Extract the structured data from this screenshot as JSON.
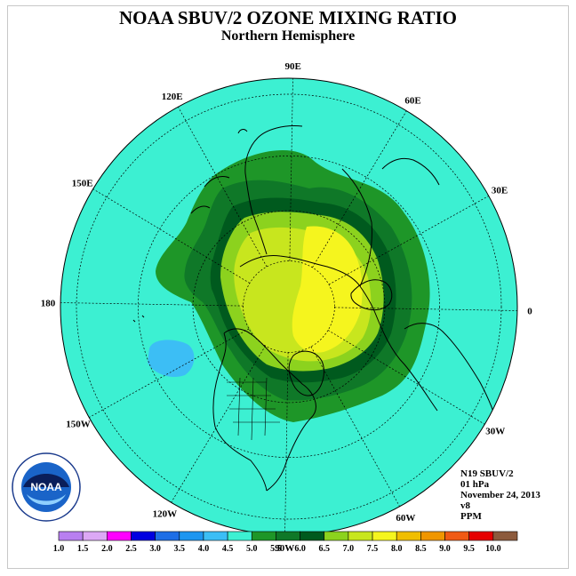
{
  "title": "NOAA SBUV/2 OZONE MIXING RATIO",
  "subtitle": "Northern Hemisphere",
  "longitude_labels": [
    {
      "text": "90E",
      "lon": 90
    },
    {
      "text": "60E",
      "lon": 60
    },
    {
      "text": "30E",
      "lon": 30
    },
    {
      "text": "0",
      "lon": 0
    },
    {
      "text": "30W",
      "lon": -30
    },
    {
      "text": "60W",
      "lon": -60
    },
    {
      "text": "90W",
      "lon": -90
    },
    {
      "text": "120W",
      "lon": -120
    },
    {
      "text": "150W",
      "lon": -150
    },
    {
      "text": "180",
      "lon": 180
    },
    {
      "text": "150E",
      "lon": 150
    },
    {
      "text": "120E",
      "lon": 120
    }
  ],
  "info": {
    "satellite": "N19 SBUV/2",
    "level": "01 hPa",
    "date": "November 24, 2013",
    "version": "v8",
    "units": "PPM"
  },
  "logo_text": {
    "center": "NOAA",
    "ring": "NATIONAL OCEANIC AND ATMOSPHERIC ADMINISTRATION · U.S. DEPARTMENT OF COMMERCE"
  },
  "colorbar": {
    "labels": [
      "1.0",
      "1.5",
      "2.0",
      "2.5",
      "3.0",
      "3.5",
      "4.0",
      "4.5",
      "5.0",
      "5.5",
      "6.0",
      "6.5",
      "7.0",
      "7.5",
      "8.0",
      "8.5",
      "9.0",
      "9.5",
      "10.0"
    ],
    "colors": [
      "#b87ff0",
      "#dca8f5",
      "#ff00ff",
      "#0000e0",
      "#1e6ee6",
      "#1e96f0",
      "#3cbef5",
      "#3cf0d2",
      "#1e9628",
      "#0f7828",
      "#005a1e",
      "#8cd21e",
      "#c8e61e",
      "#f5f51e",
      "#f0be00",
      "#f09600",
      "#f05a14",
      "#e60000",
      "#8c5a3c"
    ]
  },
  "chart_data": {
    "type": "heatmap",
    "projection": "north polar stereographic",
    "variable": "ozone mixing ratio",
    "units": "PPM",
    "pressure_level": "01 hPa",
    "date": "November 24, 2013",
    "scale_range": [
      1.0,
      10.0
    ],
    "background_level_ppm": "4.5-5.0",
    "features": [
      {
        "region": "polar cap, Eurasian side",
        "range_ppm": "7.0-7.5"
      },
      {
        "region": "high latitudes ring",
        "range_ppm": "6.5-7.0"
      },
      {
        "region": "mid-latitude collar",
        "range_ppm": "5.0-6.5"
      },
      {
        "region": "North Pacific cell",
        "range_ppm": "4.0-4.5"
      }
    ]
  }
}
